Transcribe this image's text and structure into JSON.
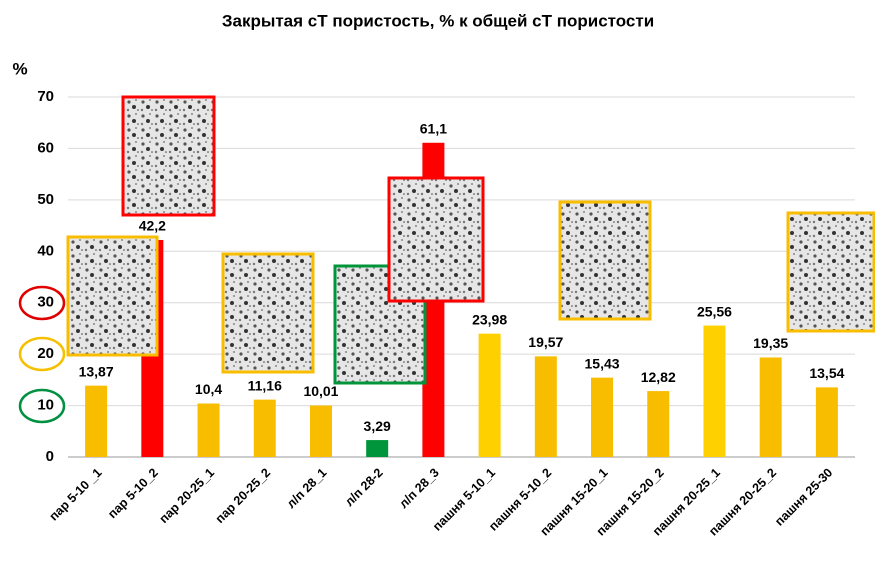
{
  "chart_data": {
    "type": "bar",
    "title": "Закрытая сТ пористость, % к общей сТ пористости",
    "y_label": "%",
    "categories": [
      "пар 5-10 _1",
      "пар 5-10_2",
      "пар 20-25_1",
      "пар 20-25_2",
      "л/п 28_1",
      "л/п 28-2",
      "л/п 28_3",
      "пашня 5-10_1",
      "пашня 5-10_2",
      "пашня 15-20_1",
      "пашня 15-20_2",
      "пашня 20-25_1",
      "пашня 20-25_2",
      "пашня 25-30"
    ],
    "values": [
      13.87,
      42.2,
      10.4,
      11.16,
      10.01,
      3.29,
      61.1,
      23.98,
      19.57,
      15.43,
      12.82,
      25.56,
      19.35,
      13.54
    ],
    "value_labels": [
      "13,87",
      "42,2",
      "10,4",
      "11,16",
      "10,01",
      "3,29",
      "61,1",
      "23,98",
      "19,57",
      "15,43",
      "12,82",
      "25,56",
      "19,35",
      "13,54"
    ],
    "colors": [
      "#f9bd00",
      "#ff0000",
      "#f9bd00",
      "#f9bd00",
      "#f9bd00",
      "#00953a",
      "#ff0000",
      "#ffd000",
      "#f9bd00",
      "#f9bd00",
      "#f9bd00",
      "#ffd000",
      "#f9bd00",
      "#f9bd00"
    ],
    "ylim": [
      0,
      70
    ],
    "yticks": [
      0,
      10,
      20,
      30,
      40,
      50,
      60,
      70
    ],
    "grid": true
  }
}
